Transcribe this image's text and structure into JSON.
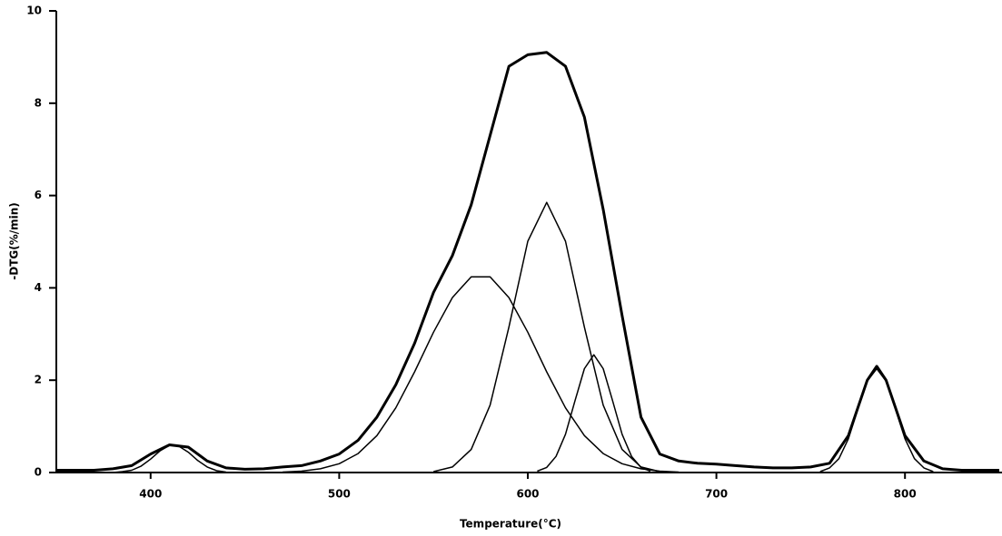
{
  "chart_data": {
    "type": "line",
    "xlabel": "Temperature(°C)",
    "ylabel": "-DTG(%/min)",
    "xlim": [
      350,
      850
    ],
    "xticks": [
      400,
      500,
      600,
      700,
      800
    ],
    "ylim": [
      0,
      10
    ],
    "yticks": [
      0,
      2,
      4,
      6,
      8,
      10
    ],
    "series": [
      {
        "color": "#000000",
        "line_width": 3,
        "x": [
          350,
          360,
          370,
          380,
          390,
          400,
          410,
          420,
          430,
          440,
          450,
          460,
          470,
          480,
          490,
          500,
          510,
          520,
          530,
          540,
          550,
          560,
          570,
          580,
          590,
          600,
          610,
          620,
          630,
          640,
          650,
          660,
          670,
          680,
          690,
          700,
          710,
          720,
          730,
          740,
          750,
          760,
          770,
          775,
          780,
          785,
          790,
          795,
          800,
          810,
          820,
          830,
          840,
          850
        ],
        "values": [
          0.05,
          0.05,
          0.05,
          0.08,
          0.15,
          0.4,
          0.6,
          0.55,
          0.25,
          0.1,
          0.07,
          0.08,
          0.12,
          0.15,
          0.25,
          0.4,
          0.7,
          1.2,
          1.9,
          2.8,
          3.9,
          4.7,
          5.8,
          7.3,
          8.8,
          9.05,
          9.1,
          8.8,
          7.7,
          5.7,
          3.4,
          1.2,
          0.4,
          0.25,
          0.2,
          0.18,
          0.15,
          0.12,
          0.1,
          0.1,
          0.12,
          0.2,
          0.8,
          1.4,
          2.0,
          2.3,
          2.0,
          1.4,
          0.8,
          0.25,
          0.08,
          0.05,
          0.05,
          0.05
        ]
      },
      {
        "color": "#000000",
        "line_width": 1.5,
        "x": [
          380,
          385,
          390,
          395,
          400,
          405,
          410,
          415,
          420,
          425,
          430,
          435,
          440
        ],
        "values": [
          0,
          0.02,
          0.05,
          0.14,
          0.29,
          0.47,
          0.59,
          0.57,
          0.44,
          0.26,
          0.12,
          0.04,
          0.01
        ]
      },
      {
        "color": "#000000",
        "line_width": 1.5,
        "x": [
          470,
          480,
          490,
          500,
          510,
          520,
          530,
          540,
          550,
          560,
          570,
          580,
          590,
          600,
          610,
          620,
          630,
          640,
          650,
          660,
          670,
          680
        ],
        "values": [
          0.01,
          0.03,
          0.08,
          0.19,
          0.41,
          0.8,
          1.4,
          2.18,
          3.04,
          3.79,
          4.24,
          4.24,
          3.79,
          3.04,
          2.18,
          1.4,
          0.8,
          0.41,
          0.19,
          0.08,
          0.03,
          0.01
        ]
      },
      {
        "color": "#000000",
        "line_width": 1.5,
        "x": [
          550,
          560,
          570,
          580,
          590,
          600,
          610,
          620,
          630,
          640,
          650,
          660,
          670
        ],
        "values": [
          0.02,
          0.12,
          0.5,
          1.46,
          3.15,
          5.01,
          5.85,
          5.01,
          3.15,
          1.46,
          0.5,
          0.12,
          0.02
        ]
      },
      {
        "color": "#000000",
        "line_width": 1.5,
        "x": [
          605,
          610,
          615,
          620,
          625,
          630,
          635,
          640,
          645,
          650,
          655,
          660,
          665
        ],
        "values": [
          0.03,
          0.11,
          0.35,
          0.83,
          1.55,
          2.25,
          2.55,
          2.25,
          1.55,
          0.83,
          0.35,
          0.11,
          0.03
        ]
      },
      {
        "color": "#000000",
        "line_width": 1.5,
        "x": [
          755,
          760,
          765,
          770,
          775,
          780,
          785,
          790,
          795,
          800,
          805,
          810,
          815
        ],
        "values": [
          0.02,
          0.1,
          0.3,
          0.73,
          1.37,
          1.98,
          2.25,
          1.98,
          1.37,
          0.73,
          0.3,
          0.1,
          0.02
        ]
      }
    ]
  }
}
